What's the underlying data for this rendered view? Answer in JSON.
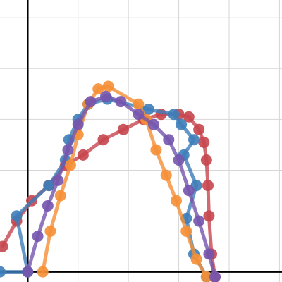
{
  "chart_data": {
    "type": "line",
    "title": "",
    "xlabel": "",
    "ylabel": "",
    "grid": true,
    "xlim": [
      -0.55,
      5.05
    ],
    "ylim": [
      -0.2,
      5.35
    ],
    "series": [
      {
        "color": "#c7464e",
        "points": [
          [
            -0.5,
            0.5
          ],
          [
            -0.22,
            1.0
          ],
          [
            0.08,
            1.4
          ],
          [
            0.42,
            1.7
          ],
          [
            0.75,
            2.1
          ],
          [
            1.1,
            2.3
          ],
          [
            1.5,
            2.6
          ],
          [
            1.9,
            2.8
          ],
          [
            2.3,
            3.0
          ],
          [
            2.65,
            3.1
          ],
          [
            3.0,
            3.1
          ],
          [
            3.2,
            3.05
          ],
          [
            3.4,
            2.8
          ],
          [
            3.5,
            2.55
          ],
          [
            3.55,
            2.2
          ],
          [
            3.58,
            1.7
          ],
          [
            3.6,
            1.1
          ],
          [
            3.65,
            0.35
          ],
          [
            3.72,
            -0.1
          ]
        ]
      },
      {
        "color": "#3d7db8",
        "points": [
          [
            -0.55,
            0.0
          ],
          [
            0.0,
            0.0
          ],
          [
            -0.22,
            1.1
          ],
          [
            0.42,
            1.7
          ],
          [
            0.75,
            2.2
          ],
          [
            0.82,
            2.6
          ],
          [
            1.0,
            3.0
          ],
          [
            1.2,
            3.3
          ],
          [
            1.58,
            3.4
          ],
          [
            2.4,
            3.2
          ],
          [
            2.9,
            3.1
          ],
          [
            3.05,
            2.9
          ],
          [
            3.3,
            2.6
          ],
          [
            3.1,
            2.3
          ],
          [
            3.35,
            1.7
          ],
          [
            3.15,
            1.05
          ],
          [
            3.3,
            0.35
          ],
          [
            3.55,
            -0.1
          ]
        ]
      },
      {
        "color": "#f58f36",
        "points": [
          [
            0.3,
            0.0
          ],
          [
            0.45,
            0.8
          ],
          [
            0.65,
            1.5
          ],
          [
            0.85,
            2.1
          ],
          [
            1.0,
            2.7
          ],
          [
            1.2,
            3.3
          ],
          [
            1.4,
            3.6
          ],
          [
            1.6,
            3.65
          ],
          [
            2.2,
            3.3
          ],
          [
            2.35,
            3.0
          ],
          [
            2.55,
            2.4
          ],
          [
            2.75,
            1.9
          ],
          [
            2.95,
            1.4
          ],
          [
            3.15,
            0.8
          ],
          [
            3.35,
            0.25
          ],
          [
            3.55,
            -0.1
          ]
        ]
      },
      {
        "color": "#7455ad",
        "points": [
          [
            0.0,
            0.0
          ],
          [
            0.2,
            0.7
          ],
          [
            0.4,
            1.3
          ],
          [
            0.6,
            1.8
          ],
          [
            0.8,
            2.4
          ],
          [
            1.0,
            2.9
          ],
          [
            1.25,
            3.35
          ],
          [
            1.55,
            3.45
          ],
          [
            1.85,
            3.35
          ],
          [
            2.2,
            3.1
          ],
          [
            2.5,
            2.9
          ],
          [
            2.8,
            2.6
          ],
          [
            3.0,
            2.2
          ],
          [
            3.2,
            1.6
          ],
          [
            3.4,
            1.0
          ],
          [
            3.6,
            0.35
          ],
          [
            3.72,
            -0.1
          ]
        ]
      }
    ]
  }
}
